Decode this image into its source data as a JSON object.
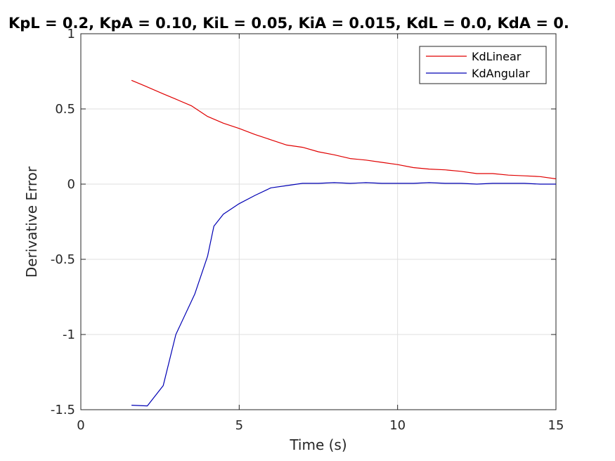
{
  "chart_data": {
    "type": "line",
    "title": "KpL = 0.2, KpA = 0.10, KiL = 0.05, KiA = 0.015, KdL = 0.0, KdA = 0.",
    "xlabel": "Time (s)",
    "ylabel": "Derivative Error",
    "xlim": [
      0,
      15
    ],
    "ylim": [
      -1.5,
      1
    ],
    "xticks": [
      0,
      5,
      10,
      15
    ],
    "xtick_labels": [
      "0",
      "5",
      "10",
      "15"
    ],
    "yticks": [
      -1.5,
      -1,
      -0.5,
      0,
      0.5,
      1
    ],
    "ytick_labels": [
      "-1.5",
      "-1",
      "-0.5",
      "0",
      "0.5",
      "1"
    ],
    "grid": true,
    "legend_position": "top-right",
    "series": [
      {
        "name": "KdLinear",
        "color": "#e00000",
        "x": [
          1.6,
          2.0,
          2.6,
          3.0,
          3.5,
          4.0,
          4.5,
          5.0,
          5.5,
          6.0,
          6.5,
          7.0,
          7.5,
          8.0,
          8.5,
          9.0,
          9.5,
          10.0,
          10.5,
          11.0,
          11.5,
          12.0,
          12.5,
          13.0,
          13.5,
          14.0,
          14.5,
          15.0
        ],
        "y": [
          0.69,
          0.655,
          0.6,
          0.565,
          0.52,
          0.45,
          0.405,
          0.37,
          0.33,
          0.295,
          0.26,
          0.245,
          0.215,
          0.195,
          0.17,
          0.16,
          0.145,
          0.13,
          0.11,
          0.1,
          0.095,
          0.085,
          0.07,
          0.07,
          0.06,
          0.055,
          0.05,
          0.035
        ]
      },
      {
        "name": "KdAngular",
        "color": "#0000b4",
        "x": [
          1.6,
          2.1,
          2.6,
          3.0,
          3.6,
          4.0,
          4.2,
          4.5,
          5.0,
          5.5,
          6.0,
          6.5,
          7.0,
          7.5,
          8.0,
          8.5,
          9.0,
          9.5,
          10.0,
          10.5,
          11.0,
          11.5,
          12.0,
          12.5,
          13.0,
          13.5,
          14.0,
          14.5,
          15.0
        ],
        "y": [
          -1.47,
          -1.475,
          -1.34,
          -1.0,
          -0.73,
          -0.48,
          -0.28,
          -0.2,
          -0.13,
          -0.075,
          -0.025,
          -0.01,
          0.005,
          0.005,
          0.01,
          0.005,
          0.01,
          0.005,
          0.005,
          0.005,
          0.01,
          0.005,
          0.005,
          0.0,
          0.005,
          0.005,
          0.005,
          0.0,
          0.0
        ]
      }
    ]
  }
}
